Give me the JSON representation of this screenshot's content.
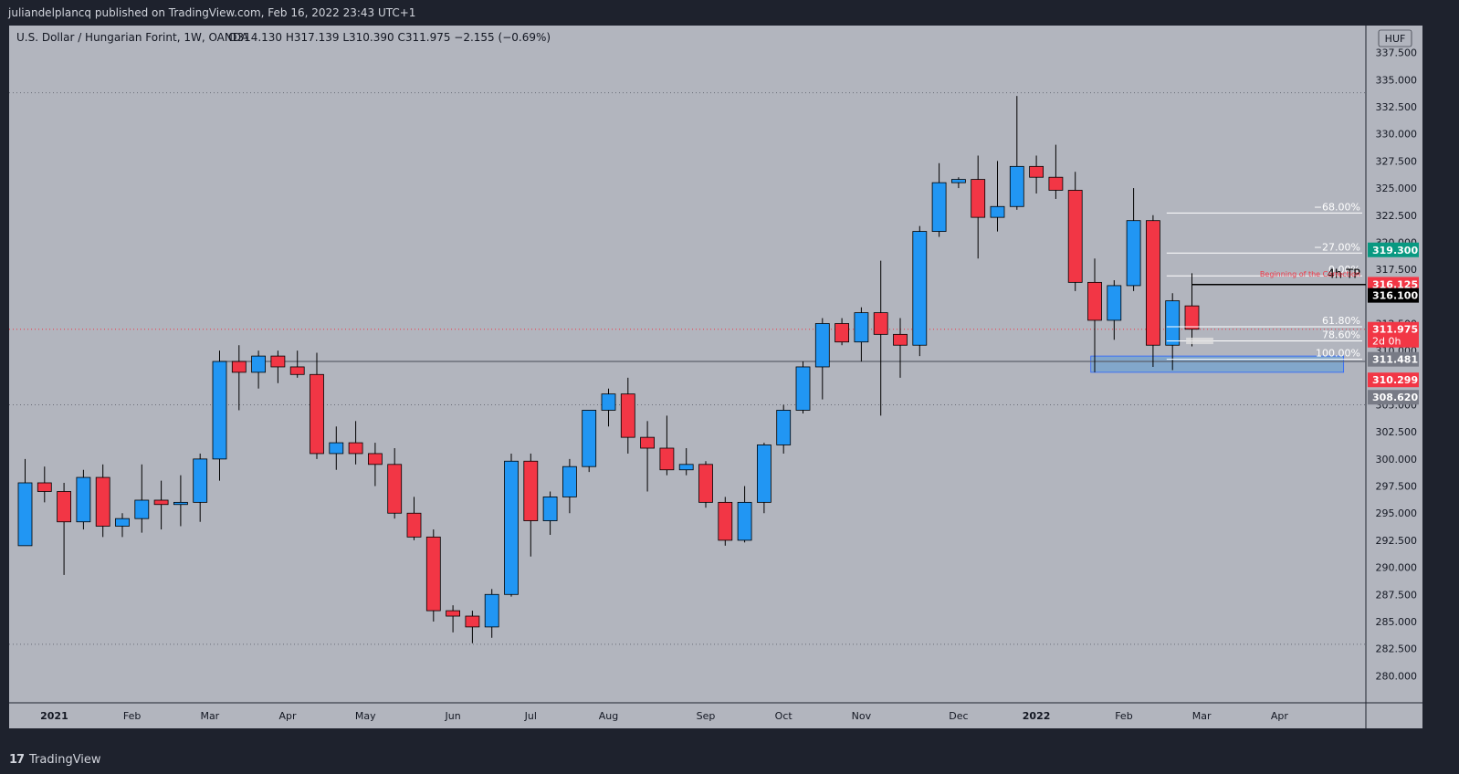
{
  "header": {
    "published": "juliandelplancq published on TradingView.com, Feb 16, 2022 23:43 UTC+1"
  },
  "footer": {
    "logo_mark": "17",
    "brand": "TradingView"
  },
  "chart_data": {
    "type": "candlestick",
    "title": "U.S. Dollar / Hungarian Forint, 1W, OANDA",
    "ohlc_label": "O314.130  H317.139  L310.390  C311.975  −2.155 (−0.69%)",
    "currency": "HUF",
    "ylim": [
      277.5,
      340.0
    ],
    "y_ticks": [
      280,
      282.5,
      285,
      287.5,
      290,
      292.5,
      295,
      297.5,
      300,
      302.5,
      305,
      307.5,
      310,
      312.5,
      315,
      317.5,
      320,
      322.5,
      325,
      327.5,
      330,
      332.5,
      335,
      337.5
    ],
    "x_labels": [
      {
        "label": "2021",
        "week": 1.5,
        "bold": true
      },
      {
        "label": "Feb",
        "week": 5.5
      },
      {
        "label": "Mar",
        "week": 9.5
      },
      {
        "label": "Apr",
        "week": 13.5
      },
      {
        "label": "May",
        "week": 17.5
      },
      {
        "label": "Jun",
        "week": 22
      },
      {
        "label": "Jul",
        "week": 26
      },
      {
        "label": "Aug",
        "week": 30
      },
      {
        "label": "Sep",
        "week": 35
      },
      {
        "label": "Oct",
        "week": 39
      },
      {
        "label": "Nov",
        "week": 43
      },
      {
        "label": "Dec",
        "week": 48
      },
      {
        "label": "2022",
        "week": 52,
        "bold": true
      },
      {
        "label": "Feb",
        "week": 56.5
      },
      {
        "label": "Mar",
        "week": 60.5
      },
      {
        "label": "Apr",
        "week": 64.5
      }
    ],
    "colors": {
      "up": "#2196f3",
      "down": "#f23645",
      "background": "#b2b5be",
      "axis_bg": "#b2b5be",
      "frame": "#1e222d"
    },
    "candles": [
      {
        "o": 292.0,
        "h": 300.0,
        "l": 292.0,
        "c": 297.8
      },
      {
        "o": 297.8,
        "h": 299.3,
        "l": 296.0,
        "c": 297.0
      },
      {
        "o": 297.0,
        "h": 297.8,
        "l": 289.3,
        "c": 294.2
      },
      {
        "o": 294.2,
        "h": 299.0,
        "l": 293.5,
        "c": 298.3
      },
      {
        "o": 298.3,
        "h": 299.5,
        "l": 292.8,
        "c": 293.8
      },
      {
        "o": 293.8,
        "h": 295.0,
        "l": 292.8,
        "c": 294.5
      },
      {
        "o": 294.5,
        "h": 299.5,
        "l": 293.2,
        "c": 296.2
      },
      {
        "o": 296.2,
        "h": 298.0,
        "l": 293.5,
        "c": 295.8
      },
      {
        "o": 295.8,
        "h": 298.5,
        "l": 293.8,
        "c": 296.0
      },
      {
        "o": 296.0,
        "h": 300.5,
        "l": 294.2,
        "c": 300.0
      },
      {
        "o": 300.0,
        "h": 310.0,
        "l": 298.0,
        "c": 309.0
      },
      {
        "o": 309.0,
        "h": 310.5,
        "l": 304.5,
        "c": 308.0
      },
      {
        "o": 308.0,
        "h": 310.0,
        "l": 306.5,
        "c": 309.5
      },
      {
        "o": 309.5,
        "h": 310.0,
        "l": 307.0,
        "c": 308.5
      },
      {
        "o": 308.5,
        "h": 310.0,
        "l": 307.5,
        "c": 307.8
      },
      {
        "o": 307.8,
        "h": 309.8,
        "l": 300.0,
        "c": 300.5
      },
      {
        "o": 300.5,
        "h": 303.0,
        "l": 299.0,
        "c": 301.5
      },
      {
        "o": 301.5,
        "h": 303.5,
        "l": 299.5,
        "c": 300.5
      },
      {
        "o": 300.5,
        "h": 301.5,
        "l": 297.5,
        "c": 299.5
      },
      {
        "o": 299.5,
        "h": 301.0,
        "l": 294.5,
        "c": 295.0
      },
      {
        "o": 295.0,
        "h": 296.5,
        "l": 292.5,
        "c": 292.8
      },
      {
        "o": 292.8,
        "h": 293.5,
        "l": 285.0,
        "c": 286.0
      },
      {
        "o": 286.0,
        "h": 286.5,
        "l": 284.0,
        "c": 285.5
      },
      {
        "o": 285.5,
        "h": 286.0,
        "l": 283.0,
        "c": 284.5
      },
      {
        "o": 284.5,
        "h": 288.0,
        "l": 283.5,
        "c": 287.5
      },
      {
        "o": 287.5,
        "h": 300.5,
        "l": 287.3,
        "c": 299.8
      },
      {
        "o": 299.8,
        "h": 300.5,
        "l": 291.0,
        "c": 294.3
      },
      {
        "o": 294.3,
        "h": 297.0,
        "l": 293.0,
        "c": 296.5
      },
      {
        "o": 296.5,
        "h": 300.0,
        "l": 295.0,
        "c": 299.3
      },
      {
        "o": 299.3,
        "h": 304.5,
        "l": 298.8,
        "c": 304.5
      },
      {
        "o": 304.5,
        "h": 306.5,
        "l": 303.0,
        "c": 306.0
      },
      {
        "o": 306.0,
        "h": 307.5,
        "l": 300.5,
        "c": 302.0
      },
      {
        "o": 302.0,
        "h": 303.5,
        "l": 297.0,
        "c": 301.0
      },
      {
        "o": 301.0,
        "h": 304.0,
        "l": 298.5,
        "c": 299.0
      },
      {
        "o": 299.0,
        "h": 301.0,
        "l": 298.5,
        "c": 299.5
      },
      {
        "o": 299.5,
        "h": 299.8,
        "l": 295.5,
        "c": 296.0
      },
      {
        "o": 296.0,
        "h": 296.5,
        "l": 292.0,
        "c": 292.5
      },
      {
        "o": 292.5,
        "h": 297.5,
        "l": 292.3,
        "c": 296.0
      },
      {
        "o": 296.0,
        "h": 301.5,
        "l": 295.0,
        "c": 301.3
      },
      {
        "o": 301.3,
        "h": 305.0,
        "l": 300.5,
        "c": 304.5
      },
      {
        "o": 304.5,
        "h": 309.0,
        "l": 304.2,
        "c": 308.5
      },
      {
        "o": 308.5,
        "h": 313.0,
        "l": 305.5,
        "c": 312.5
      },
      {
        "o": 312.5,
        "h": 313.0,
        "l": 310.5,
        "c": 310.8
      },
      {
        "o": 310.8,
        "h": 314.0,
        "l": 309.0,
        "c": 313.5
      },
      {
        "o": 313.5,
        "h": 318.3,
        "l": 304.0,
        "c": 311.5
      },
      {
        "o": 311.5,
        "h": 313.0,
        "l": 307.5,
        "c": 310.5
      },
      {
        "o": 310.5,
        "h": 321.5,
        "l": 309.5,
        "c": 321.0
      },
      {
        "o": 321.0,
        "h": 327.3,
        "l": 320.5,
        "c": 325.5
      },
      {
        "o": 325.5,
        "h": 326.0,
        "l": 325.0,
        "c": 325.8
      },
      {
        "o": 325.8,
        "h": 328.0,
        "l": 318.5,
        "c": 322.3
      },
      {
        "o": 322.3,
        "h": 327.5,
        "l": 321.0,
        "c": 323.3
      },
      {
        "o": 323.3,
        "h": 333.5,
        "l": 323.0,
        "c": 327.0
      },
      {
        "o": 327.0,
        "h": 328.0,
        "l": 324.5,
        "c": 326.0
      },
      {
        "o": 326.0,
        "h": 329.0,
        "l": 324.0,
        "c": 324.8
      },
      {
        "o": 324.8,
        "h": 326.5,
        "l": 315.5,
        "c": 316.3
      },
      {
        "o": 316.3,
        "h": 318.5,
        "l": 308.0,
        "c": 312.8
      },
      {
        "o": 312.8,
        "h": 316.5,
        "l": 311.0,
        "c": 316.0
      },
      {
        "o": 316.0,
        "h": 325.0,
        "l": 315.5,
        "c": 322.0
      },
      {
        "o": 322.0,
        "h": 322.5,
        "l": 308.5,
        "c": 310.5
      },
      {
        "o": 310.5,
        "h": 315.3,
        "l": 308.2,
        "c": 314.6
      },
      {
        "o": 314.13,
        "h": 317.139,
        "l": 310.39,
        "c": 311.975
      }
    ],
    "fib_levels": [
      {
        "label": "−68.00%",
        "value": 322.7
      },
      {
        "label": "−27.00%",
        "value": 319.0
      },
      {
        "label": "0.00%",
        "value": 316.9
      },
      {
        "label": "61.80%",
        "value": 312.2
      },
      {
        "label": "78.60%",
        "value": 310.9
      },
      {
        "label": "100.00%",
        "value": 309.2
      }
    ],
    "annotations": {
      "tp_text": "4h TP",
      "correction_text": "Beginning of the Correction",
      "tp_level": 316.1,
      "support_level": 309.0,
      "upper_dotted": 333.8,
      "lower_dotted": 305.0,
      "lowest_dotted": 282.9,
      "demand_zone": [
        308.0,
        309.5
      ]
    },
    "price_tags": [
      {
        "label": "319.300",
        "value": 319.3,
        "bg": "#089981",
        "fg": "#ffffff"
      },
      {
        "label": "316.125",
        "value": 316.125,
        "bg": "#f23645",
        "fg": "#ffffff"
      },
      {
        "label": "316.100",
        "value": 315.1,
        "bg": "#000000",
        "fg": "#ffffff"
      },
      {
        "label": "311.975",
        "value": 311.975,
        "bg": "#f23645",
        "fg": "#ffffff",
        "sub": "2d 0h"
      },
      {
        "label": "311.481",
        "value": 309.2,
        "bg": "#787b86",
        "fg": "#ffffff"
      },
      {
        "label": "310.299",
        "value": 307.3,
        "bg": "#f23645",
        "fg": "#ffffff"
      },
      {
        "label": "308.620",
        "value": 305.7,
        "bg": "#787b86",
        "fg": "#ffffff"
      }
    ]
  }
}
